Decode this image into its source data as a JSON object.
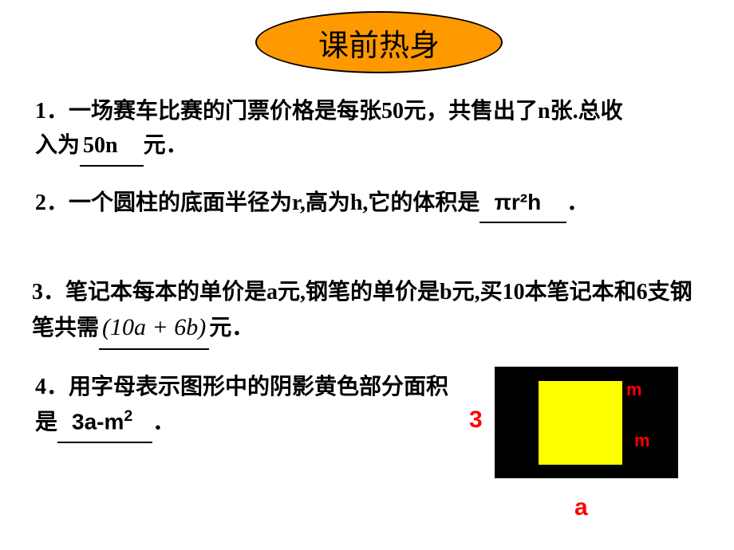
{
  "title": "课前热身",
  "problems": {
    "p1_prefix": "1．一场赛车比赛的门票价格是每张50元，共售出了n张.总收入为",
    "p1_ans": "50n",
    "p1_suffix": "元．",
    "p2_prefix": "2．一个圆柱的底面半径为r,高为h,它的体积是",
    "p2_ans_pi": "πr²h",
    "p2_suffix": "．",
    "p3_prefix": "3．笔记本每本的单价是a元,钢笔的单价是b元,买10本笔记本和6支钢笔共需",
    "p3_ans": "(10a + 6b)",
    "p3_suffix": "元．",
    "p4_prefix": "4．用字母表示图形中的阴影黄色部分面积是",
    "p4_ans_pre": "3a-m",
    "p4_ans_sup": "2",
    "p4_suffix": "．"
  },
  "figure": {
    "label_m": "m",
    "label_3": "3",
    "label_a": "a",
    "black_rect_color": "#000000",
    "yellow_square_color": "#ffff00",
    "label_color": "#ff0000"
  },
  "styling": {
    "title_bg": "#ff9900",
    "title_border": "#000000",
    "page_bg": "#ffffff",
    "text_color": "#000000",
    "body_fontsize": 28,
    "title_fontsize": 38
  }
}
